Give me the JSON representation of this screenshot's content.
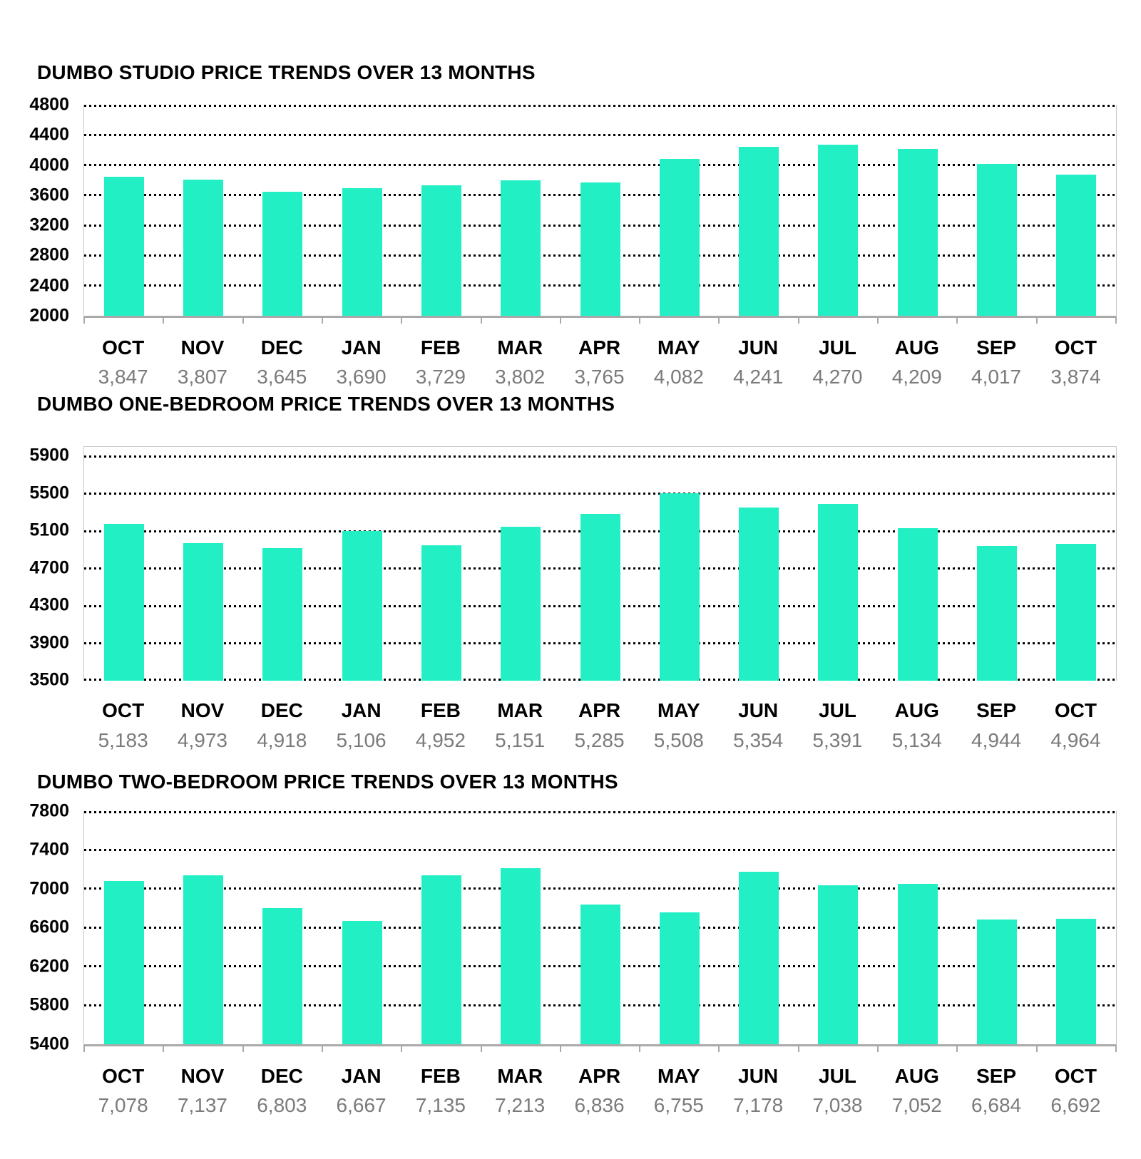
{
  "colors": {
    "bar": "#22F0C4",
    "grid": "#000000",
    "axis": "#a9a9a9",
    "frame": "#c9c9c9",
    "value_text": "#7b7b7b",
    "label_text": "#000000"
  },
  "chart_data": [
    {
      "type": "bar",
      "title": "DUMBO STUDIO PRICE TRENDS OVER 13 MONTHS",
      "categories": [
        "OCT",
        "NOV",
        "DEC",
        "JAN",
        "FEB",
        "MAR",
        "APR",
        "MAY",
        "JUN",
        "JUL",
        "AUG",
        "SEP",
        "OCT"
      ],
      "values": [
        3847,
        3807,
        3645,
        3690,
        3729,
        3802,
        3765,
        4082,
        4241,
        4270,
        4209,
        4017,
        3874
      ],
      "value_labels": [
        "3,847",
        "3,807",
        "3,645",
        "3,690",
        "3,729",
        "3,802",
        "3,765",
        "4,082",
        "4,241",
        "4,270",
        "4,209",
        "4,017",
        "3,874"
      ],
      "ylim": [
        2000,
        4800
      ],
      "yticks": [
        2000,
        2400,
        2800,
        3200,
        3600,
        4000,
        4400,
        4800
      ],
      "xlabel": "",
      "ylabel": "",
      "grid": "horizontal-dotted",
      "legend": "none"
    },
    {
      "type": "bar",
      "title": "DUMBO ONE-BEDROOM PRICE TRENDS OVER 13 MONTHS",
      "categories": [
        "OCT",
        "NOV",
        "DEC",
        "JAN",
        "FEB",
        "MAR",
        "APR",
        "MAY",
        "JUN",
        "JUL",
        "AUG",
        "SEP",
        "OCT"
      ],
      "values": [
        5183,
        4973,
        4918,
        5106,
        4952,
        5151,
        5285,
        5508,
        5354,
        5391,
        5134,
        4944,
        4964
      ],
      "value_labels": [
        "5,183",
        "4,973",
        "4,918",
        "5,106",
        "4,952",
        "5,151",
        "5,285",
        "5,508",
        "5,354",
        "5,391",
        "5,134",
        "4,944",
        "4,964"
      ],
      "ylim": [
        3500,
        6000
      ],
      "yticks": [
        3500,
        3900,
        4300,
        4700,
        5100,
        5500,
        5900
      ],
      "xlabel": "",
      "ylabel": "",
      "grid": "horizontal-dotted",
      "legend": "none"
    },
    {
      "type": "bar",
      "title": "DUMBO TWO-BEDROOM PRICE TRENDS OVER 13 MONTHS",
      "categories": [
        "OCT",
        "NOV",
        "DEC",
        "JAN",
        "FEB",
        "MAR",
        "APR",
        "MAY",
        "JUN",
        "JUL",
        "AUG",
        "SEP",
        "OCT"
      ],
      "values": [
        7078,
        7137,
        6803,
        6667,
        7135,
        7213,
        6836,
        6755,
        7178,
        7038,
        7052,
        6684,
        6692
      ],
      "value_labels": [
        "7,078",
        "7,137",
        "6,803",
        "6,667",
        "7,135",
        "7,213",
        "6,836",
        "6,755",
        "7,178",
        "7,038",
        "7,052",
        "6,684",
        "6,692"
      ],
      "ylim": [
        5400,
        7800
      ],
      "yticks": [
        5400,
        5800,
        6200,
        6600,
        7000,
        7400,
        7800
      ],
      "xlabel": "",
      "ylabel": "",
      "grid": "horizontal-dotted",
      "legend": "none"
    }
  ]
}
